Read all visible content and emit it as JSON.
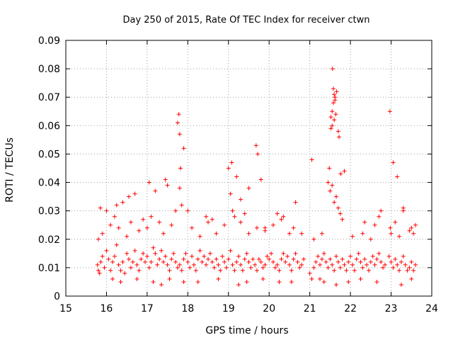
{
  "chart_data": {
    "type": "scatter",
    "title": "Day 250 of 2015, Rate Of TEC Index for receiver ctwn",
    "xlabel": "GPS time / hours",
    "ylabel": "ROTI / TECUs",
    "xlim": [
      15,
      24
    ],
    "ylim": [
      0,
      0.09
    ],
    "x_ticks": [
      "15",
      "16",
      "17",
      "18",
      "19",
      "20",
      "21",
      "22",
      "23",
      "24"
    ],
    "y_ticks": [
      "0",
      "0.01",
      "0.02",
      "0.03",
      "0.04",
      "0.05",
      "0.06",
      "0.07",
      "0.08",
      "0.09"
    ],
    "grid": true,
    "marker": "plus",
    "marker_color": "#ff0000",
    "series": [
      {
        "x": [
          15.78,
          15.8,
          15.83,
          15.86,
          15.9,
          15.95,
          16.0,
          16.05,
          16.1,
          16.15,
          16.2,
          16.25,
          16.3,
          16.35,
          16.4,
          16.45,
          16.5,
          16.55,
          16.6,
          16.65,
          16.7,
          16.75,
          16.8,
          16.85,
          16.9,
          16.95,
          17.0,
          17.05,
          17.1,
          17.15,
          17.2,
          17.25,
          17.3,
          17.35,
          17.4,
          17.45,
          17.5,
          17.55,
          17.6,
          17.65,
          17.7,
          17.75,
          17.8,
          17.85,
          17.9,
          17.95,
          18.0,
          18.05,
          18.1,
          18.15,
          18.2,
          18.25,
          18.3,
          18.35,
          18.4,
          18.45,
          18.5,
          18.55,
          18.6,
          18.65,
          18.7,
          18.75,
          18.8,
          18.85,
          18.9,
          18.95,
          19.0,
          19.05,
          19.1,
          19.15,
          19.2,
          19.25,
          19.3,
          19.35,
          19.4,
          19.45,
          19.5,
          19.55,
          19.6,
          19.65,
          19.7,
          19.75,
          19.8,
          19.85,
          19.9,
          19.95,
          20.0,
          20.05,
          20.1,
          20.15,
          20.2,
          20.25,
          20.3,
          20.35,
          20.4,
          20.45,
          20.5,
          20.55,
          20.6,
          20.65,
          20.7,
          20.75,
          20.8,
          20.85,
          21.0,
          21.05,
          21.1,
          21.15,
          21.2,
          21.25,
          21.3,
          21.35,
          21.4,
          21.45,
          21.5,
          21.55,
          21.6,
          21.65,
          21.7,
          21.75,
          21.8,
          21.85,
          21.9,
          21.95,
          22.0,
          22.05,
          22.1,
          22.15,
          22.2,
          22.25,
          22.3,
          22.35,
          22.4,
          22.45,
          22.5,
          22.55,
          22.6,
          22.65,
          22.7,
          22.75,
          22.8,
          22.85,
          22.95,
          23.0,
          23.05,
          23.1,
          23.15,
          23.2,
          23.25,
          23.3,
          23.35,
          23.4,
          23.45,
          23.5,
          23.55,
          23.6,
          15.8,
          15.9,
          16.1,
          16.2,
          16.3,
          16.5,
          16.6,
          16.8,
          16.9,
          17.0,
          17.1,
          17.3,
          17.4,
          17.6,
          17.7,
          17.8,
          17.82,
          17.85,
          18.1,
          18.3,
          18.5,
          18.7,
          18.9,
          19.05,
          19.1,
          19.15,
          19.3,
          19.5,
          19.7,
          19.9,
          20.1,
          20.3,
          20.5,
          20.6,
          21.5,
          21.55,
          21.6,
          21.65,
          21.7,
          21.75,
          21.8,
          22.3,
          22.6,
          22.7,
          22.98,
          23.0,
          23.1,
          23.3,
          23.5,
          23.55,
          16.25,
          16.55,
          17.05,
          17.45,
          17.75,
          17.78,
          17.8,
          17.9,
          18.45,
          19.0,
          19.08,
          19.2,
          19.3,
          19.5,
          19.68,
          19.72,
          19.8,
          20.35,
          20.65,
          21.05,
          21.45,
          21.48,
          21.52,
          21.55,
          21.58,
          21.62,
          21.66,
          21.7,
          21.72,
          21.76,
          21.85,
          22.35,
          22.75,
          22.97,
          23.05,
          23.15,
          23.3,
          23.6,
          15.85,
          16.0,
          16.4,
          16.7,
          17.2,
          17.5,
          18.0,
          18.6,
          19.4,
          19.9,
          20.2,
          20.8,
          21.1,
          21.3,
          22.05,
          22.5,
          23.2,
          23.45,
          16.15,
          16.35,
          16.75,
          17.15,
          17.35,
          17.55,
          17.9,
          18.25,
          18.75,
          19.25,
          19.45,
          19.85,
          20.25,
          20.55,
          21.25,
          21.35,
          21.65,
          21.95,
          22.25,
          22.65,
          23.25,
          23.5,
          21.56,
          21.58,
          21.6,
          21.62,
          21.6,
          21.64,
          21.55,
          21.52
        ],
        "y": [
          0.011,
          0.009,
          0.008,
          0.012,
          0.014,
          0.01,
          0.016,
          0.013,
          0.009,
          0.012,
          0.014,
          0.018,
          0.011,
          0.009,
          0.012,
          0.008,
          0.015,
          0.013,
          0.01,
          0.012,
          0.016,
          0.011,
          0.009,
          0.013,
          0.015,
          0.012,
          0.014,
          0.01,
          0.012,
          0.017,
          0.015,
          0.011,
          0.013,
          0.016,
          0.012,
          0.014,
          0.011,
          0.009,
          0.013,
          0.015,
          0.012,
          0.01,
          0.011,
          0.009,
          0.013,
          0.015,
          0.012,
          0.01,
          0.014,
          0.011,
          0.009,
          0.013,
          0.016,
          0.012,
          0.014,
          0.011,
          0.013,
          0.015,
          0.012,
          0.01,
          0.013,
          0.011,
          0.009,
          0.014,
          0.012,
          0.01,
          0.013,
          0.016,
          0.011,
          0.009,
          0.012,
          0.014,
          0.011,
          0.009,
          0.013,
          0.015,
          0.012,
          0.01,
          0.013,
          0.011,
          0.009,
          0.013,
          0.012,
          0.01,
          0.011,
          0.014,
          0.013,
          0.015,
          0.012,
          0.01,
          0.011,
          0.009,
          0.013,
          0.015,
          0.012,
          0.014,
          0.011,
          0.009,
          0.013,
          0.015,
          0.012,
          0.01,
          0.011,
          0.013,
          0.008,
          0.006,
          0.01,
          0.012,
          0.014,
          0.011,
          0.013,
          0.015,
          0.012,
          0.01,
          0.013,
          0.011,
          0.009,
          0.014,
          0.012,
          0.01,
          0.013,
          0.011,
          0.009,
          0.012,
          0.014,
          0.011,
          0.009,
          0.013,
          0.015,
          0.012,
          0.01,
          0.013,
          0.011,
          0.009,
          0.012,
          0.014,
          0.011,
          0.013,
          0.015,
          0.012,
          0.01,
          0.011,
          0.014,
          0.012,
          0.01,
          0.013,
          0.011,
          0.009,
          0.012,
          0.014,
          0.011,
          0.009,
          0.01,
          0.012,
          0.009,
          0.011,
          0.02,
          0.022,
          0.025,
          0.028,
          0.024,
          0.021,
          0.026,
          0.023,
          0.027,
          0.024,
          0.028,
          0.026,
          0.022,
          0.025,
          0.03,
          0.038,
          0.045,
          0.032,
          0.024,
          0.021,
          0.026,
          0.022,
          0.025,
          0.036,
          0.03,
          0.028,
          0.026,
          0.022,
          0.024,
          0.023,
          0.025,
          0.027,
          0.022,
          0.024,
          0.037,
          0.039,
          0.033,
          0.035,
          0.031,
          0.029,
          0.027,
          0.022,
          0.025,
          0.028,
          0.024,
          0.022,
          0.026,
          0.031,
          0.024,
          0.022,
          0.032,
          0.035,
          0.04,
          0.041,
          0.061,
          0.064,
          0.057,
          0.052,
          0.028,
          0.045,
          0.047,
          0.042,
          0.034,
          0.038,
          0.053,
          0.05,
          0.041,
          0.028,
          0.033,
          0.048,
          0.04,
          0.045,
          0.063,
          0.065,
          0.068,
          0.07,
          0.072,
          0.058,
          0.056,
          0.043,
          0.044,
          0.026,
          0.03,
          0.065,
          0.047,
          0.042,
          0.03,
          0.025,
          0.031,
          0.03,
          0.033,
          0.036,
          0.037,
          0.039,
          0.03,
          0.027,
          0.029,
          0.024,
          0.029,
          0.022,
          0.02,
          0.022,
          0.021,
          0.02,
          0.021,
          0.023,
          0.006,
          0.005,
          0.006,
          0.005,
          0.004,
          0.006,
          0.005,
          0.005,
          0.006,
          0.004,
          0.005,
          0.006,
          0.005,
          0.005,
          0.006,
          0.005,
          0.004,
          0.005,
          0.006,
          0.005,
          0.004,
          0.006,
          0.08,
          0.073,
          0.071,
          0.069,
          0.062,
          0.064,
          0.06,
          0.059
        ]
      }
    ]
  }
}
